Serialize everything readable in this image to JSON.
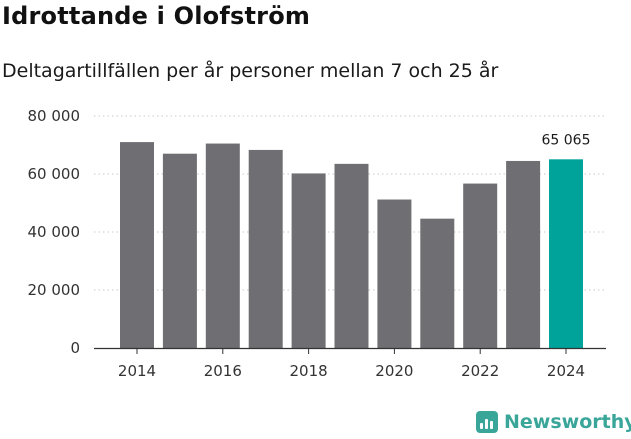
{
  "header": {
    "title": "Idrottande i Olofström",
    "subtitle": "Deltagartillfällen per år personer mellan 7 och 25 år"
  },
  "chart_data": {
    "type": "bar",
    "categories": [
      "2014",
      "2015",
      "2016",
      "2017",
      "2018",
      "2019",
      "2020",
      "2021",
      "2022",
      "2023",
      "2024"
    ],
    "values": [
      71000,
      67000,
      70500,
      68300,
      60200,
      63500,
      51200,
      44600,
      56700,
      64500,
      65065
    ],
    "x_tick_labels": [
      "2014",
      "2016",
      "2018",
      "2020",
      "2022",
      "2024"
    ],
    "y_ticks": [
      0,
      20000,
      40000,
      60000,
      80000
    ],
    "y_tick_labels": [
      "0",
      "20 000",
      "40 000",
      "60 000",
      "80 000"
    ],
    "ylim": [
      0,
      80000
    ],
    "highlight_index": 10,
    "highlight_label": "65 065",
    "grid": "horizontal-dotted",
    "colors": {
      "bar": "#6f6e73",
      "highlight": "#00a39a",
      "grid": "#c9c9c9",
      "axis": "#333333"
    }
  },
  "brand": {
    "name": "Newsworthy",
    "color": "#3aa69a"
  }
}
